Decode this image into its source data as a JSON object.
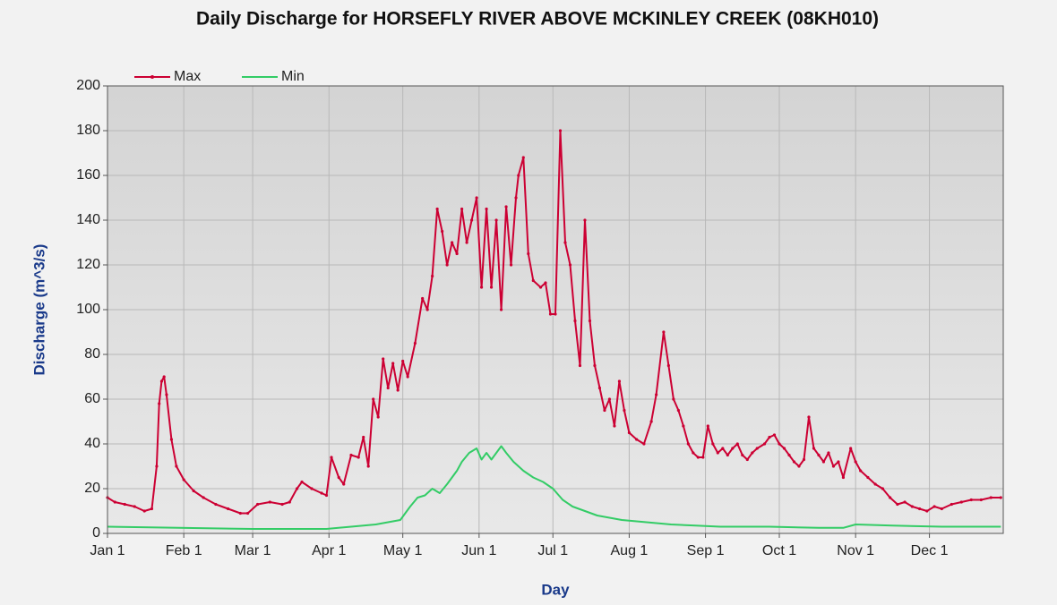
{
  "chart_data": {
    "type": "line",
    "title": "Daily Discharge for HORSEFLY RIVER ABOVE MCKINLEY CREEK (08KH010)",
    "x_label": "Day",
    "y_label": "Discharge (m^3/s)",
    "xlim": [
      1,
      365
    ],
    "ylim": [
      0,
      200
    ],
    "xticks": [
      {
        "value": 1,
        "label": "Jan 1"
      },
      {
        "value": 32,
        "label": "Feb 1"
      },
      {
        "value": 60,
        "label": "Mar 1"
      },
      {
        "value": 91,
        "label": "Apr 1"
      },
      {
        "value": 121,
        "label": "May 1"
      },
      {
        "value": 152,
        "label": "Jun 1"
      },
      {
        "value": 182,
        "label": "Jul 1"
      },
      {
        "value": 213,
        "label": "Aug 1"
      },
      {
        "value": 244,
        "label": "Sep 1"
      },
      {
        "value": 274,
        "label": "Oct 1"
      },
      {
        "value": 305,
        "label": "Nov 1"
      },
      {
        "value": 335,
        "label": "Dec 1"
      }
    ],
    "yticks": [
      0,
      20,
      40,
      60,
      80,
      100,
      120,
      140,
      160,
      180,
      200
    ],
    "grid": true,
    "legend": "top-left",
    "series": [
      {
        "name": "Max",
        "color": "#cc0033",
        "markers": true,
        "x": [
          1,
          4,
          8,
          12,
          16,
          19,
          21,
          22,
          23,
          24,
          25,
          27,
          29,
          32,
          36,
          40,
          45,
          50,
          55,
          58,
          62,
          67,
          72,
          75,
          78,
          80,
          84,
          88,
          90,
          92,
          95,
          97,
          100,
          103,
          105,
          107,
          109,
          111,
          113,
          115,
          117,
          119,
          121,
          123,
          126,
          129,
          131,
          133,
          135,
          137,
          139,
          141,
          143,
          145,
          147,
          149,
          151,
          153,
          155,
          157,
          159,
          161,
          163,
          165,
          167,
          168,
          170,
          172,
          174,
          177,
          179,
          181,
          183,
          185,
          187,
          189,
          191,
          193,
          195,
          197,
          199,
          201,
          203,
          205,
          207,
          209,
          211,
          213,
          216,
          219,
          222,
          224,
          227,
          229,
          231,
          233,
          235,
          237,
          239,
          241,
          243,
          245,
          247,
          249,
          251,
          253,
          255,
          257,
          259,
          261,
          263,
          265,
          268,
          270,
          272,
          274,
          276,
          278,
          280,
          282,
          284,
          286,
          288,
          290,
          292,
          294,
          296,
          298,
          300,
          303,
          305,
          307,
          310,
          313,
          316,
          319,
          322,
          325,
          328,
          331,
          334,
          337,
          340,
          344,
          348,
          352,
          356,
          360,
          364
        ],
        "values": [
          16,
          14,
          13,
          12,
          10,
          11,
          30,
          58,
          68,
          70,
          62,
          42,
          30,
          24,
          19,
          16,
          13,
          11,
          9,
          9,
          13,
          14,
          13,
          14,
          20,
          23,
          20,
          18,
          17,
          34,
          25,
          22,
          35,
          34,
          43,
          30,
          60,
          52,
          78,
          65,
          76,
          64,
          77,
          70,
          85,
          105,
          100,
          115,
          145,
          135,
          120,
          130,
          125,
          145,
          130,
          140,
          150,
          110,
          145,
          110,
          140,
          100,
          146,
          120,
          150,
          160,
          168,
          125,
          113,
          110,
          112,
          98,
          98,
          180,
          130,
          120,
          95,
          75,
          140,
          95,
          75,
          65,
          55,
          60,
          48,
          68,
          55,
          45,
          42,
          40,
          50,
          62,
          90,
          75,
          60,
          55,
          48,
          40,
          36,
          34,
          34,
          48,
          40,
          36,
          38,
          35,
          38,
          40,
          35,
          33,
          36,
          38,
          40,
          43,
          44,
          40,
          38,
          35,
          32,
          30,
          33,
          52,
          38,
          35,
          32,
          36,
          30,
          32,
          25,
          38,
          32,
          28,
          25,
          22,
          20,
          16,
          13,
          14,
          12,
          11,
          10,
          12,
          11,
          13,
          14,
          15,
          15,
          16,
          16
        ]
      },
      {
        "name": "Min",
        "color": "#33cc66",
        "markers": false,
        "x": [
          1,
          30,
          60,
          90,
          100,
          110,
          115,
          120,
          124,
          127,
          130,
          133,
          136,
          139,
          141,
          143,
          145,
          148,
          151,
          153,
          155,
          157,
          159,
          161,
          163,
          166,
          170,
          174,
          178,
          182,
          186,
          190,
          195,
          200,
          210,
          220,
          230,
          240,
          250,
          270,
          290,
          300,
          305,
          320,
          340,
          364
        ],
        "values": [
          3,
          2.5,
          2,
          2,
          3,
          4,
          5,
          6,
          12,
          16,
          17,
          20,
          18,
          22,
          25,
          28,
          32,
          36,
          38,
          33,
          36,
          33,
          36,
          39,
          36,
          32,
          28,
          25,
          23,
          20,
          15,
          12,
          10,
          8,
          6,
          5,
          4,
          3.5,
          3,
          3,
          2.5,
          2.5,
          4,
          3.5,
          3,
          3
        ]
      }
    ]
  }
}
